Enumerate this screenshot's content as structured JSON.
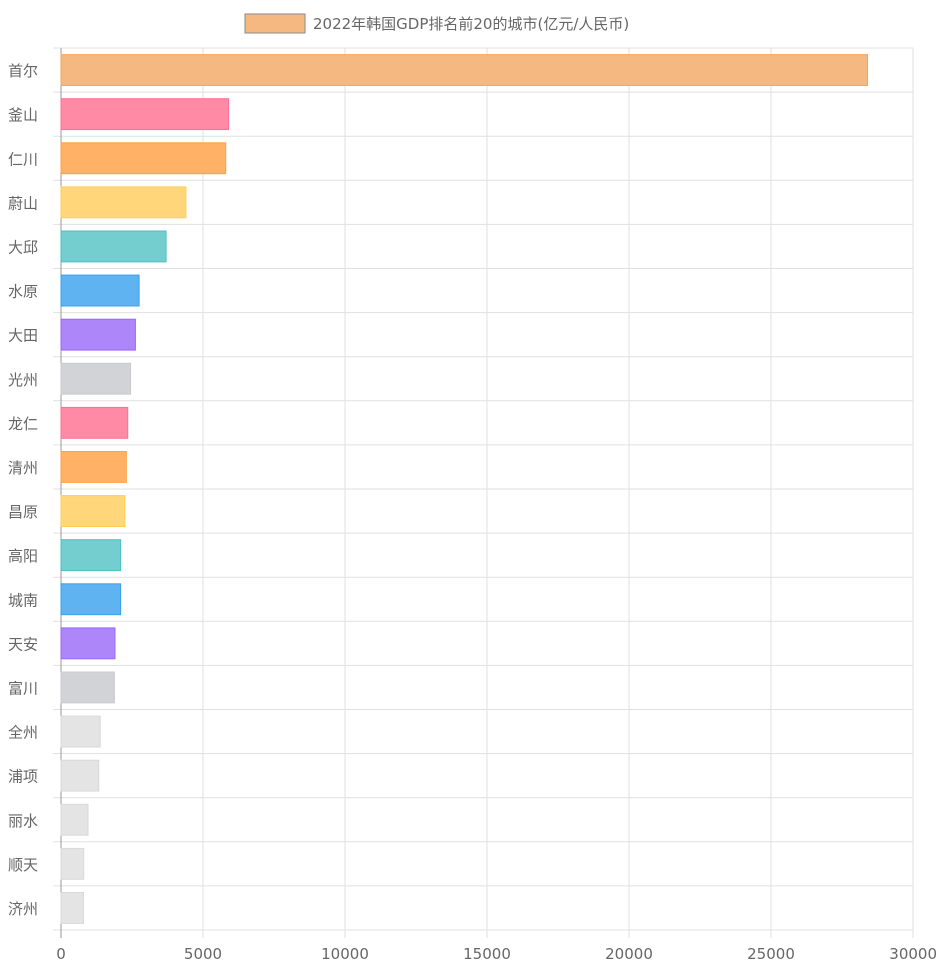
{
  "chart_data": {
    "type": "bar",
    "orientation": "horizontal",
    "title": "",
    "xlabel": "",
    "ylabel": "",
    "legend": {
      "label": "2022年韩国GDP排名前20的城市(亿元/人民币)",
      "position": "top",
      "color_fill": "#f5b880",
      "color_border": "#8a8a8a"
    },
    "xlim": [
      0,
      30000
    ],
    "x_ticks": [
      0,
      5000,
      10000,
      15000,
      20000,
      25000,
      30000
    ],
    "grid": true,
    "categories": [
      "首尔",
      "釜山",
      "仁川",
      "蔚山",
      "大邱",
      "水原",
      "大田",
      "光州",
      "龙仁",
      "清州",
      "昌原",
      "高阳",
      "城南",
      "天安",
      "富川",
      "全州",
      "浦项",
      "丽水",
      "顺天",
      "济州"
    ],
    "values": [
      28400,
      5900,
      5800,
      4400,
      3700,
      2750,
      2620,
      2450,
      2350,
      2300,
      2250,
      2100,
      2100,
      1900,
      1880,
      1380,
      1330,
      950,
      800,
      790
    ],
    "bar_colors": [
      "#f5b880",
      "#ff8aa5",
      "#ffb266",
      "#ffd679",
      "#74cdce",
      "#5fb3f0",
      "#ad86f9",
      "#d2d3d7",
      "#ff8aa5",
      "#ffb266",
      "#ffd679",
      "#74cdce",
      "#5fb3f0",
      "#ad86f9",
      "#d2d3d7",
      "#e4e4e4",
      "#e4e4e4",
      "#e4e4e4",
      "#e4e4e4",
      "#e4e4e4"
    ],
    "border_colors": [
      "#f4a55d",
      "#ff6f93",
      "#ff9f40",
      "#ffcd56",
      "#4bc0c0",
      "#36a2eb",
      "#9966ff",
      "#c9cbcf",
      "#ff6f93",
      "#ff9f40",
      "#ffcd56",
      "#4bc0c0",
      "#36a2eb",
      "#9966ff",
      "#c9cbcf",
      "#d9d9d9",
      "#d9d9d9",
      "#d9d9d9",
      "#d9d9d9",
      "#d9d9d9"
    ]
  }
}
